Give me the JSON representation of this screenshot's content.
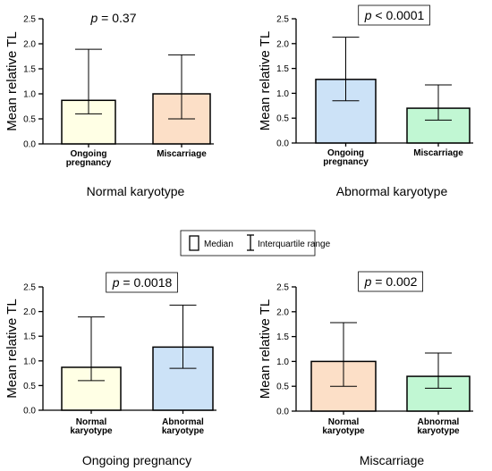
{
  "chart_data": [
    {
      "type": "bar",
      "title": "Normal karyotype",
      "p_prefix": "p",
      "p_value": "= 0.37",
      "p_boxed": false,
      "ylabel": "Mean relative TL",
      "ylim": [
        0,
        2.5
      ],
      "yticks": [
        "0.0",
        "0.5",
        "1.0",
        "1.5",
        "2.0",
        "2.5"
      ],
      "categories": [
        [
          "Ongoing",
          "pregnancy"
        ],
        [
          "Miscarriage"
        ]
      ],
      "values": [
        0.87,
        1.0
      ],
      "iqr": [
        [
          0.6,
          1.89
        ],
        [
          0.5,
          1.78
        ]
      ],
      "colors": [
        "#ffffe0",
        "#fcd9bd"
      ]
    },
    {
      "type": "bar",
      "title": "Abnormal karyotype",
      "p_prefix": "p",
      "p_value": "< 0.0001",
      "p_boxed": true,
      "ylabel": "Mean relative TL",
      "ylim": [
        0,
        2.5
      ],
      "yticks": [
        "0.0",
        "0.5",
        "1.0",
        "1.5",
        "2.0",
        "2.5"
      ],
      "categories": [
        [
          "Ongoing",
          "pregnancy"
        ],
        [
          "Miscarriage"
        ]
      ],
      "values": [
        1.28,
        0.7
      ],
      "iqr": [
        [
          0.85,
          2.13
        ],
        [
          0.46,
          1.17
        ]
      ],
      "colors": [
        "#c3ddf6",
        "#b6f6cb"
      ]
    },
    {
      "type": "bar",
      "title": "Ongoing pregnancy",
      "p_prefix": "p",
      "p_value": "= 0.0018",
      "p_boxed": true,
      "ylabel": "Mean relative TL",
      "ylim": [
        0,
        2.5
      ],
      "yticks": [
        "0.0",
        "0.5",
        "1.0",
        "1.5",
        "2.0",
        "2.5"
      ],
      "categories": [
        [
          "Normal",
          "karyotype"
        ],
        [
          "Abnormal",
          "karyotype"
        ]
      ],
      "values": [
        0.87,
        1.28
      ],
      "iqr": [
        [
          0.6,
          1.89
        ],
        [
          0.85,
          2.13
        ]
      ],
      "colors": [
        "#ffffe0",
        "#c3ddf6"
      ]
    },
    {
      "type": "bar",
      "title": "Miscarriage",
      "p_prefix": "p",
      "p_value": "= 0.002",
      "p_boxed": true,
      "ylabel": "Mean relative TL",
      "ylim": [
        0,
        2.5
      ],
      "yticks": [
        "0.0",
        "0.5",
        "1.0",
        "1.5",
        "2.0",
        "2.5"
      ],
      "categories": [
        [
          "Normal",
          "karyotype"
        ],
        [
          "Abnormal",
          "karyotype"
        ]
      ],
      "values": [
        1.0,
        0.7
      ],
      "iqr": [
        [
          0.5,
          1.78
        ],
        [
          0.46,
          1.17
        ]
      ],
      "colors": [
        "#fcd9bd",
        "#b6f6cb"
      ]
    }
  ],
  "legend": {
    "bar_label": "Median",
    "range_label": "Interquartile range"
  }
}
